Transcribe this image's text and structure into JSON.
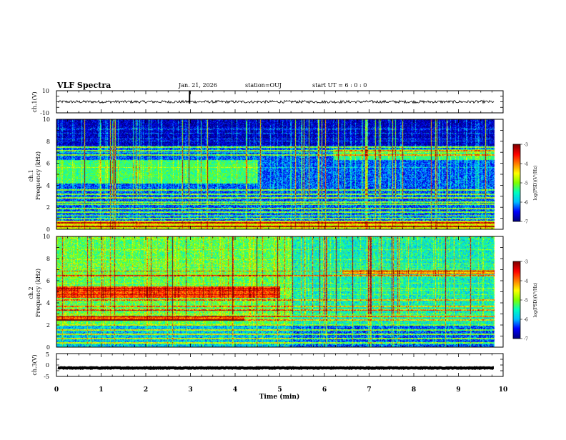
{
  "header": {
    "title": "VLF Spectra",
    "date": "Jan. 21, 2026",
    "station": "station=OUJ",
    "start": "start  UT =  6 : 0 : 0"
  },
  "chart_data": [
    {
      "type": "line",
      "name": "ch1-waveform",
      "ylabel": "ch.1(V)",
      "ylim": [
        -10,
        10
      ],
      "ytick_labels": [
        "10",
        "-10"
      ],
      "baseline": 0,
      "noise_amplitude": 1.2
    },
    {
      "type": "heatmap",
      "name": "ch1-spectrogram",
      "ylabel_line1": "ch.1",
      "ylabel_line2": "Frequency (kHz)",
      "ylim": [
        0,
        10
      ],
      "ytick_labels": [
        "0",
        "2",
        "4",
        "6",
        "8",
        "10"
      ],
      "colorbar": {
        "label": "log(PSD)(V²/Hz)",
        "range": [
          -7,
          -3
        ],
        "tick_labels": [
          "-3",
          "-4",
          "-5",
          "-6",
          "-7"
        ]
      },
      "bands_khz": [
        0.3,
        0.6,
        1.0,
        1.3,
        1.6,
        1.9,
        2.3,
        2.5,
        2.9,
        3.2,
        3.6,
        6.8,
        7.2,
        7.5
      ],
      "emissions": [
        {
          "t_min": [
            0,
            4.5
          ],
          "f_khz": [
            4.2,
            6.3
          ],
          "level": -5.3
        },
        {
          "t_min": [
            6.2,
            9.8
          ],
          "f_khz": [
            6.3,
            7.3
          ],
          "level": -5.4
        },
        {
          "t_min": [
            0,
            9.8
          ],
          "f_khz": [
            0,
            0.8
          ],
          "level": -4.6
        }
      ]
    },
    {
      "type": "heatmap",
      "name": "ch2-spectrogram",
      "ylabel_line1": "ch.2",
      "ylabel_line2": "Frequency (kHz)",
      "ylim": [
        0,
        10
      ],
      "ytick_labels": [
        "0",
        "2",
        "4",
        "6",
        "8",
        "10"
      ],
      "colorbar": {
        "label": "log(PSD)(V²/Hz)",
        "range": [
          -7,
          -3
        ],
        "tick_labels": [
          "-3",
          "-4",
          "-5",
          "-6",
          "-7"
        ]
      },
      "bands_khz": [
        0.4,
        0.8,
        1.2,
        1.6,
        2.0,
        2.5,
        2.8,
        3.4,
        3.7,
        4.3,
        6.5,
        6.9
      ],
      "emissions": [
        {
          "t_min": [
            0,
            5.0
          ],
          "f_khz": [
            4.5,
            5.5
          ],
          "level": -3.8
        },
        {
          "t_min": [
            0,
            4.2
          ],
          "f_khz": [
            2.4,
            2.8
          ],
          "level": -3.9
        },
        {
          "t_min": [
            6.4,
            9.8
          ],
          "f_khz": [
            6.6,
            7.0
          ],
          "level": -4.3
        },
        {
          "t_min": [
            0,
            9.8
          ],
          "f_khz": [
            0,
            10
          ],
          "level": -5.0
        }
      ]
    },
    {
      "type": "line",
      "name": "ch3-waveform",
      "ylabel": "ch.3(V)",
      "ylim": [
        -5,
        5
      ],
      "ytick_labels": [
        "5",
        "0",
        "-5"
      ],
      "baseline": -1.3,
      "noise_amplitude": 0.15
    }
  ],
  "x_axis": {
    "label": "Time (min)",
    "range": [
      0,
      10
    ],
    "tick_labels": [
      "0",
      "1",
      "2",
      "3",
      "4",
      "5",
      "6",
      "7",
      "8",
      "9",
      "10"
    ],
    "data_end": 9.8
  },
  "colors": {
    "axis": "#000000",
    "colormap": [
      "#00007f",
      "#0000ff",
      "#00bfff",
      "#00ffbf",
      "#7fff00",
      "#ffff00",
      "#ff7f00",
      "#ff0000",
      "#7f0000"
    ]
  }
}
